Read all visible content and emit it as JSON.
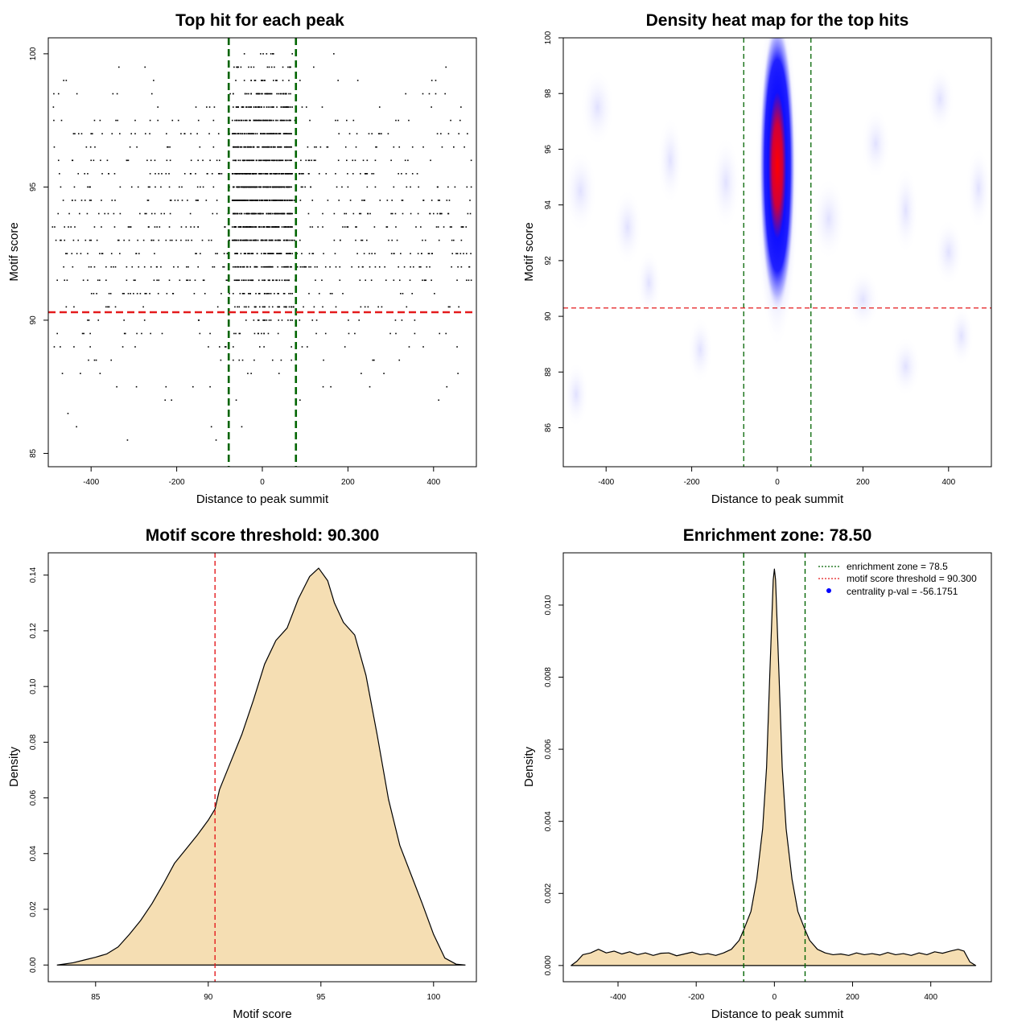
{
  "colors": {
    "threshold": "#e41a1c",
    "zone": "#006400",
    "fill": "#f5deb3",
    "point": "#000000",
    "heat_low": "#ffffff",
    "heat_mid": "#0000ff",
    "heat_high": "#ff0000",
    "legend_dot": "#0000ff"
  },
  "chart_data": [
    {
      "type": "scatter",
      "title": "Top hit for each peak",
      "xlabel": "Distance to peak summit",
      "ylabel": "Motif score",
      "xlim": [
        -500,
        500
      ],
      "ylim": [
        84.5,
        100.6
      ],
      "xticks": [
        -400,
        -200,
        0,
        200,
        400
      ],
      "yticks": [
        85,
        90,
        95,
        100
      ],
      "xtick_labels": [
        "-400",
        "-200",
        "0",
        "200",
        "400"
      ],
      "ytick_labels": [
        "85",
        "90",
        "95",
        "100"
      ],
      "vlines": [
        -78.5,
        78.5
      ],
      "hline": 90.3,
      "n_central_points": 1300,
      "n_background_points": 900,
      "central_range": [
        -70,
        70
      ],
      "score_mode": 95
    },
    {
      "type": "heatmap",
      "title": "Density heat map for the top hits",
      "xlabel": "Distance to peak summit",
      "ylabel": "Motif score",
      "xlim": [
        -500,
        500
      ],
      "ylim": [
        84.6,
        100
      ],
      "xticks": [
        -400,
        -200,
        0,
        200,
        400
      ],
      "yticks": [
        86,
        88,
        90,
        92,
        94,
        96,
        98,
        100
      ],
      "xtick_labels": [
        "-400",
        "-200",
        "0",
        "200",
        "400"
      ],
      "ytick_labels": [
        "86",
        "88",
        "90",
        "92",
        "94",
        "96",
        "98",
        "100"
      ],
      "vlines": [
        -78.5,
        78.5
      ],
      "hline": 90.3,
      "peak_center": [
        0,
        95.2
      ],
      "peak_spread": [
        22,
        2.2
      ]
    },
    {
      "type": "area",
      "title": "Motif score threshold: 90.300",
      "xlabel": "Motif score",
      "ylabel": "Density",
      "xlim": [
        82.9,
        101.9
      ],
      "ylim": [
        -0.006,
        0.148
      ],
      "xticks": [
        85,
        90,
        95,
        100
      ],
      "yticks": [
        0,
        0.02,
        0.04,
        0.06,
        0.08,
        0.1,
        0.12,
        0.14
      ],
      "xtick_labels": [
        "85",
        "90",
        "95",
        "100"
      ],
      "ytick_labels": [
        "0.00",
        "0.02",
        "0.04",
        "0.06",
        "0.08",
        "0.10",
        "0.12",
        "0.14"
      ],
      "vline": 90.3,
      "x": [
        83.3,
        84.0,
        84.5,
        85.0,
        85.5,
        86.0,
        86.5,
        87.0,
        87.5,
        88.0,
        88.5,
        89.0,
        89.5,
        90.0,
        90.3,
        90.5,
        91.0,
        91.5,
        92.0,
        92.5,
        93.0,
        93.5,
        94.0,
        94.5,
        94.9,
        95.3,
        95.6,
        96.0,
        96.5,
        97.0,
        97.5,
        98.0,
        98.5,
        99.0,
        99.5,
        100.0,
        100.5,
        101.0,
        101.4
      ],
      "y": [
        0.0,
        0.0008,
        0.0018,
        0.0028,
        0.004,
        0.0065,
        0.011,
        0.016,
        0.022,
        0.029,
        0.0365,
        0.0415,
        0.0465,
        0.052,
        0.056,
        0.063,
        0.073,
        0.083,
        0.095,
        0.108,
        0.1165,
        0.121,
        0.1315,
        0.1395,
        0.1425,
        0.138,
        0.13,
        0.123,
        0.1185,
        0.104,
        0.0825,
        0.0595,
        0.043,
        0.0325,
        0.022,
        0.011,
        0.0025,
        0.0003,
        0.0
      ]
    },
    {
      "type": "area",
      "title": "Enrichment zone: 78.50",
      "xlabel": "Distance to peak summit",
      "ylabel": "Density",
      "xlim": [
        -540,
        555
      ],
      "ylim": [
        -0.00045,
        0.01145
      ],
      "xticks": [
        -400,
        -200,
        0,
        200,
        400
      ],
      "yticks": [
        0,
        0.002,
        0.004,
        0.006,
        0.008,
        0.01
      ],
      "xtick_labels": [
        "-400",
        "-200",
        "0",
        "200",
        "400"
      ],
      "ytick_labels": [
        "0.000",
        "0.002",
        "0.004",
        "0.006",
        "0.008",
        "0.010"
      ],
      "vlines": [
        -78.5,
        78.5
      ],
      "x": [
        -520,
        -505,
        -490,
        -470,
        -450,
        -430,
        -410,
        -390,
        -370,
        -350,
        -330,
        -310,
        -290,
        -270,
        -250,
        -230,
        -210,
        -190,
        -170,
        -150,
        -130,
        -110,
        -90,
        -78,
        -60,
        -45,
        -30,
        -20,
        -12,
        -6,
        -3,
        0,
        3,
        6,
        12,
        20,
        30,
        45,
        60,
        78,
        90,
        110,
        130,
        150,
        170,
        190,
        210,
        230,
        250,
        270,
        290,
        310,
        330,
        350,
        370,
        390,
        410,
        430,
        450,
        470,
        485,
        500,
        515
      ],
      "y": [
        0.0,
        0.00012,
        0.0003,
        0.00035,
        0.00045,
        0.00035,
        0.0004,
        0.00032,
        0.00038,
        0.0003,
        0.00035,
        0.00028,
        0.00034,
        0.00035,
        0.00027,
        0.00032,
        0.00037,
        0.0003,
        0.00033,
        0.00028,
        0.00035,
        0.00045,
        0.0007,
        0.001,
        0.0015,
        0.0024,
        0.0038,
        0.0055,
        0.008,
        0.0098,
        0.0107,
        0.011,
        0.0107,
        0.0098,
        0.008,
        0.0055,
        0.0038,
        0.0024,
        0.0015,
        0.001,
        0.0007,
        0.00045,
        0.00035,
        0.0003,
        0.00032,
        0.00028,
        0.00035,
        0.0003,
        0.00033,
        0.00029,
        0.00036,
        0.0003,
        0.00033,
        0.00028,
        0.00035,
        0.0003,
        0.00038,
        0.00034,
        0.0004,
        0.00045,
        0.0004,
        0.0001,
        0.0
      ],
      "legend": [
        {
          "label": "enrichment zone = 78.5",
          "kind": "dotted-line",
          "color": "#006400"
        },
        {
          "label": "motif score threshold = 90.300",
          "kind": "dotted-line",
          "color": "#e41a1c"
        },
        {
          "label": "centrality p-val = -56.1751",
          "kind": "dot",
          "color": "#0000ff"
        }
      ]
    }
  ]
}
